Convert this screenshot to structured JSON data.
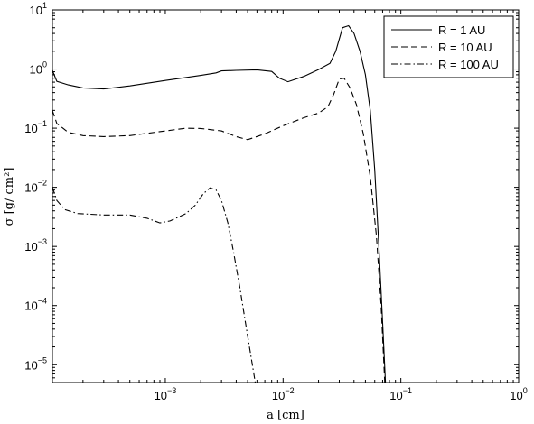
{
  "chart_data": {
    "type": "line",
    "xscale": "log",
    "yscale": "log",
    "xlim": [
      0.00011,
      1
    ],
    "ylim": [
      5e-06,
      10
    ],
    "xlabel": "a [cm]",
    "ylabel": "σ [g/ cm²]",
    "grid": false,
    "legend_position": "top-right",
    "x_ticks": [
      {
        "value": 0.001,
        "base": "10",
        "exp": "−3"
      },
      {
        "value": 0.01,
        "base": "10",
        "exp": "−2"
      },
      {
        "value": 0.1,
        "base": "10",
        "exp": "−1"
      },
      {
        "value": 1,
        "base": "10",
        "exp": "0"
      }
    ],
    "y_ticks": [
      {
        "value": 1e-05,
        "base": "10",
        "exp": "−5"
      },
      {
        "value": 0.0001,
        "base": "10",
        "exp": "−4"
      },
      {
        "value": 0.001,
        "base": "10",
        "exp": "−3"
      },
      {
        "value": 0.01,
        "base": "10",
        "exp": "−2"
      },
      {
        "value": 0.1,
        "base": "10",
        "exp": "−1"
      },
      {
        "value": 1,
        "base": "10",
        "exp": "0"
      },
      {
        "value": 10,
        "base": "10",
        "exp": "1"
      }
    ],
    "series": [
      {
        "name": "R = 1 AU",
        "dash": "solid",
        "color": "#000000",
        "points": [
          [
            0.00011,
            0.95
          ],
          [
            0.00012,
            0.62
          ],
          [
            0.00015,
            0.54
          ],
          [
            0.0002,
            0.48
          ],
          [
            0.0003,
            0.46
          ],
          [
            0.0005,
            0.52
          ],
          [
            0.001,
            0.64
          ],
          [
            0.002,
            0.78
          ],
          [
            0.0027,
            0.86
          ],
          [
            0.003,
            0.93
          ],
          [
            0.004,
            0.95
          ],
          [
            0.006,
            0.97
          ],
          [
            0.008,
            0.91
          ],
          [
            0.0093,
            0.7
          ],
          [
            0.011,
            0.61
          ],
          [
            0.015,
            0.75
          ],
          [
            0.02,
            0.98
          ],
          [
            0.025,
            1.25
          ],
          [
            0.028,
            2.0
          ],
          [
            0.032,
            5.0
          ],
          [
            0.036,
            5.4
          ],
          [
            0.04,
            4.0
          ],
          [
            0.045,
            2.0
          ],
          [
            0.05,
            0.8
          ],
          [
            0.055,
            0.2
          ],
          [
            0.06,
            0.02
          ],
          [
            0.065,
            0.001
          ],
          [
            0.07,
            5e-05
          ],
          [
            0.074,
            5e-06
          ]
        ]
      },
      {
        "name": "R = 10 AU",
        "dash": "dashed",
        "color": "#000000",
        "points": [
          [
            0.00011,
            0.2
          ],
          [
            0.00012,
            0.12
          ],
          [
            0.00015,
            0.085
          ],
          [
            0.0002,
            0.075
          ],
          [
            0.0003,
            0.072
          ],
          [
            0.0005,
            0.075
          ],
          [
            0.001,
            0.09
          ],
          [
            0.0015,
            0.1
          ],
          [
            0.002,
            0.099
          ],
          [
            0.003,
            0.09
          ],
          [
            0.004,
            0.072
          ],
          [
            0.005,
            0.064
          ],
          [
            0.007,
            0.08
          ],
          [
            0.01,
            0.11
          ],
          [
            0.015,
            0.15
          ],
          [
            0.02,
            0.18
          ],
          [
            0.024,
            0.23
          ],
          [
            0.027,
            0.38
          ],
          [
            0.03,
            0.68
          ],
          [
            0.033,
            0.7
          ],
          [
            0.037,
            0.48
          ],
          [
            0.042,
            0.25
          ],
          [
            0.048,
            0.08
          ],
          [
            0.055,
            0.015
          ],
          [
            0.062,
            0.0015
          ],
          [
            0.068,
            0.0001
          ],
          [
            0.073,
            5e-06
          ]
        ]
      },
      {
        "name": "R = 100 AU",
        "dash": "dashdot",
        "color": "#000000",
        "points": [
          [
            0.00011,
            0.01
          ],
          [
            0.00012,
            0.006
          ],
          [
            0.00014,
            0.0042
          ],
          [
            0.00018,
            0.0036
          ],
          [
            0.0003,
            0.0034
          ],
          [
            0.0005,
            0.0034
          ],
          [
            0.0007,
            0.003
          ],
          [
            0.0009,
            0.0025
          ],
          [
            0.0011,
            0.0027
          ],
          [
            0.0015,
            0.0036
          ],
          [
            0.0018,
            0.005
          ],
          [
            0.0021,
            0.0078
          ],
          [
            0.0024,
            0.0098
          ],
          [
            0.0027,
            0.009
          ],
          [
            0.003,
            0.006
          ],
          [
            0.0034,
            0.0025
          ],
          [
            0.0038,
            0.0008
          ],
          [
            0.0043,
            0.0002
          ],
          [
            0.0048,
            5e-05
          ],
          [
            0.0053,
            1.5e-05
          ],
          [
            0.0058,
            5e-06
          ]
        ]
      }
    ]
  }
}
